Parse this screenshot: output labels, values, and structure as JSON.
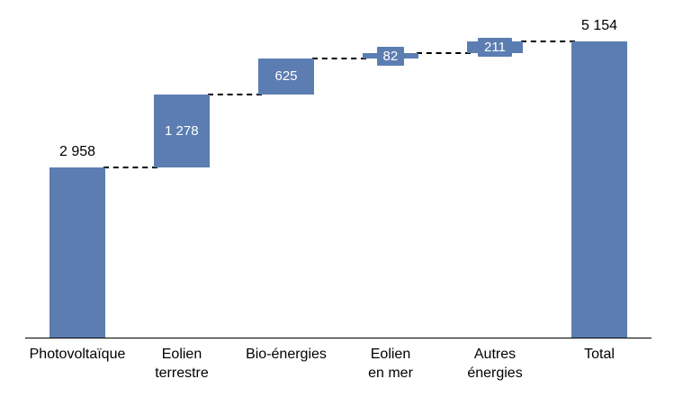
{
  "chart_data": {
    "type": "bar",
    "subtype": "waterfall",
    "title": "",
    "xlabel": "",
    "ylabel": "",
    "grid": false,
    "legend": false,
    "ylim": [
      0,
      5400
    ],
    "bar_color": "#5b7db1",
    "connector_color": "#000000",
    "categories": [
      "Photovoltaïque",
      "Eolien\nterrestre",
      "Bio-énergies",
      "Eolien\nen mer",
      "Autres\nénergies",
      "Total"
    ],
    "values": [
      2958,
      1278,
      625,
      82,
      211,
      5154
    ],
    "labels": [
      "2 958",
      "1 278",
      "625",
      "82",
      "211",
      "5 154"
    ],
    "types": [
      "absolute",
      "relative",
      "relative",
      "relative",
      "relative",
      "total"
    ],
    "label_placement": [
      "outside",
      "inside",
      "inside",
      "inside",
      "inside",
      "outside"
    ],
    "cumulative_levels": [
      2958,
      4236,
      4861,
      4943,
      5154
    ]
  }
}
